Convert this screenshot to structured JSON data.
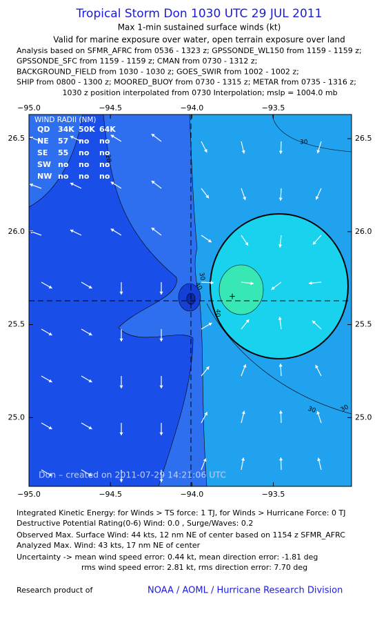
{
  "header": {
    "title": "Tropical Storm Don 1030 UTC 29 JUL 2011",
    "subtitle": "Max 1-min sustained surface winds (kt)",
    "validity": "Valid for marine exposure over water, open terrain exposure over land",
    "analysis_lines": [
      "Analysis based on SFMR_AFRC from 0536 - 1323 z; GPSSONDE_WL150 from 1159 - 1159 z;",
      "GPSSONDE_SFC from 1159 - 1159 z; CMAN from 0730 - 1312 z;",
      "BACKGROUND_FIELD from 1030 - 1030 z; GOES_SWIR from 1002 - 1002 z;",
      "SHIP from 0800 - 1300 z; MOORED_BUOY from 0730 - 1315 z; METAR from 0735 - 1316 z;",
      "1030 z position interpolated from 0730 Interpolation; mslp = 1004.0 mb"
    ]
  },
  "map": {
    "xlim": [
      -95.0,
      -93.02
    ],
    "ylim": [
      24.63,
      26.63
    ],
    "xticks": [
      {
        "value": -95.0,
        "label": "−95.0"
      },
      {
        "value": -94.5,
        "label": "−94.5"
      },
      {
        "value": -94.0,
        "label": "−94.0"
      },
      {
        "value": -93.5,
        "label": "−93.5"
      }
    ],
    "yticks": [
      {
        "value": 25.0,
        "label": "25.0"
      },
      {
        "value": 25.5,
        "label": "25.5"
      },
      {
        "value": 26.0,
        "label": "26.0"
      },
      {
        "value": 26.5,
        "label": "26.5"
      }
    ],
    "wind_radii": {
      "title": "WIND RADII (NM)",
      "rows": [
        [
          "QD",
          "34K",
          "50K",
          "64K"
        ],
        [
          "NE",
          "57",
          "no",
          "no"
        ],
        [
          "SE",
          "55",
          "no",
          "no"
        ],
        [
          "SW",
          "no",
          "no",
          "no"
        ],
        [
          "NW",
          "no",
          "no",
          "no"
        ]
      ]
    },
    "contour_labels": [
      "30",
      "30",
      "40",
      "30",
      "30",
      "20",
      "40"
    ],
    "credit": "Don – created on 2011-07-29 14:21:06 UTC"
  },
  "footer": {
    "lines": [
      "Integrated Kinetic Energy:  for Winds > TS force: 1 TJ,  for Winds > Hurricane Force: 0 TJ",
      "Destructive Potential Rating(0-6)   Wind: 0.0 , Surge/Waves: 0.2",
      "Observed Max. Surface Wind: 44 kts, 12 nm NE of center based on 1154 z SFMR_AFRC",
      "Analyzed Max. Wind: 43 kts, 17 nm NE of center",
      "Uncertainty -> mean wind speed error: 0.44 kt,   mean direction error:  -1.81 deg",
      "rms wind speed error: 2.81 kt,   rms direction error: 7.70 deg"
    ],
    "research": "Research product of",
    "org": "NOAA / AOML / Hurricane Research Division"
  }
}
